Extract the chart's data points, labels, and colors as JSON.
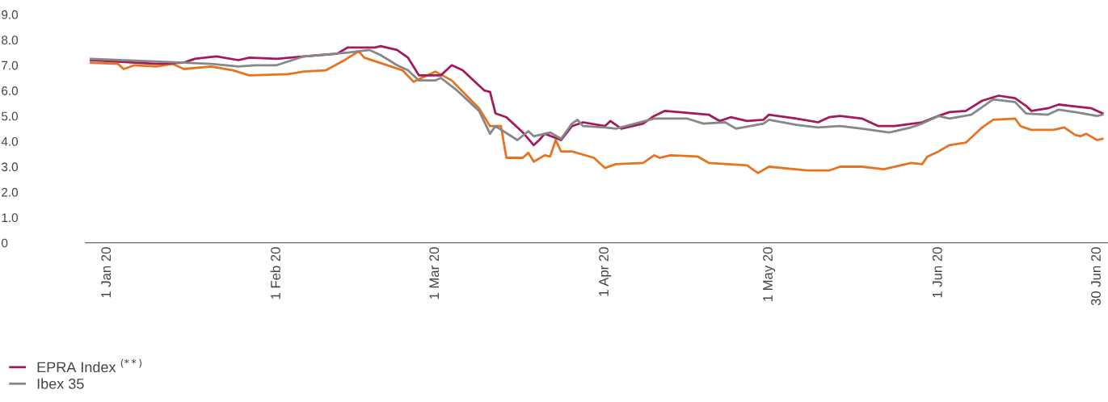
{
  "chart_data": {
    "type": "line",
    "xlim": [
      "2019-12-28",
      "2020-07-02"
    ],
    "xticks": [
      {
        "value": "2020-01-01",
        "label": "1 Jan 20"
      },
      {
        "value": "2020-02-01",
        "label": "1 Feb 20"
      },
      {
        "value": "2020-03-01",
        "label": "1 Mar 20"
      },
      {
        "value": "2020-04-01",
        "label": "1 Apr 20"
      },
      {
        "value": "2020-05-01",
        "label": "1 May 20"
      },
      {
        "value": "2020-06-01",
        "label": "1 Jun 20"
      },
      {
        "value": "2020-06-30",
        "label": "30 Jun 20"
      }
    ],
    "ylim": [
      0,
      9
    ],
    "yticks": [
      0,
      {
        "value": 1,
        "label": "1.0"
      },
      {
        "value": 2,
        "label": "2.0"
      },
      {
        "value": 3,
        "label": "3.0"
      },
      {
        "value": 4,
        "label": "4.0"
      },
      {
        "value": 5,
        "label": "5.0"
      },
      {
        "value": 6,
        "label": "6.0"
      },
      {
        "value": 7,
        "label": "7.0"
      },
      {
        "value": 8,
        "label": "8.0"
      },
      {
        "value": 9,
        "label": "9.0"
      }
    ],
    "grid": false,
    "legend": "bottom left",
    "marker": "none",
    "line_style": "solid",
    "series": [
      {
        "color": "#e8731f",
        "x": [
          "2019-12-29",
          "2020-01-03",
          "2020-01-04",
          "2020-01-06",
          "2020-01-10",
          "2020-01-13",
          "2020-01-15",
          "2020-01-20",
          "2020-01-24",
          "2020-01-27",
          "2020-02-03",
          "2020-02-06",
          "2020-02-10",
          "2020-02-13",
          "2020-02-16",
          "2020-02-17",
          "2020-02-24",
          "2020-02-26",
          "2020-03-01",
          "2020-03-04",
          "2020-03-09",
          "2020-03-11",
          "2020-03-13",
          "2020-03-14",
          "2020-03-17",
          "2020-03-18",
          "2020-03-19",
          "2020-03-21",
          "2020-03-22",
          "2020-03-23",
          "2020-03-24",
          "2020-03-26",
          "2020-03-30",
          "2020-04-01",
          "2020-04-03",
          "2020-04-08",
          "2020-04-10",
          "2020-04-11",
          "2020-04-13",
          "2020-04-18",
          "2020-04-20",
          "2020-04-27",
          "2020-04-29",
          "2020-05-01",
          "2020-05-08",
          "2020-05-12",
          "2020-05-14",
          "2020-05-18",
          "2020-05-22",
          "2020-05-27",
          "2020-05-29",
          "2020-05-30",
          "2020-06-01",
          "2020-06-03",
          "2020-06-06",
          "2020-06-09",
          "2020-06-11",
          "2020-06-15",
          "2020-06-16",
          "2020-06-18",
          "2020-06-22",
          "2020-06-24",
          "2020-06-26",
          "2020-06-27",
          "2020-06-28",
          "2020-06-30",
          "2020-07-01"
        ],
        "values": [
          7.1,
          7.05,
          6.85,
          7.0,
          6.95,
          7.05,
          6.85,
          6.95,
          6.8,
          6.6,
          6.65,
          6.75,
          6.8,
          7.15,
          7.55,
          7.3,
          6.8,
          6.35,
          6.75,
          6.4,
          5.3,
          4.6,
          4.6,
          3.35,
          3.35,
          3.55,
          3.2,
          3.45,
          3.4,
          4.05,
          3.6,
          3.6,
          3.35,
          2.95,
          3.1,
          3.15,
          3.45,
          3.35,
          3.45,
          3.4,
          3.15,
          3.05,
          2.75,
          3.0,
          2.85,
          2.85,
          3.0,
          3.0,
          2.9,
          3.15,
          3.1,
          3.4,
          3.6,
          3.85,
          3.95,
          4.55,
          4.85,
          4.9,
          4.6,
          4.45,
          4.45,
          4.55,
          4.25,
          4.2,
          4.3,
          4.05,
          4.1
        ]
      },
      {
        "name": "EPRA Index $^{(**)}$",
        "color": "#a3195b",
        "x": [
          "2019-12-29",
          "2020-01-10",
          "2020-01-15",
          "2020-01-17",
          "2020-01-21",
          "2020-01-25",
          "2020-01-27",
          "2020-02-01",
          "2020-02-06",
          "2020-02-12",
          "2020-02-14",
          "2020-02-19",
          "2020-02-20",
          "2020-02-23",
          "2020-02-25",
          "2020-02-27",
          "2020-03-02",
          "2020-03-04",
          "2020-03-06",
          "2020-03-08",
          "2020-03-10",
          "2020-03-11",
          "2020-03-12",
          "2020-03-14",
          "2020-03-17",
          "2020-03-19",
          "2020-03-20",
          "2020-03-21",
          "2020-03-24",
          "2020-03-26",
          "2020-03-28",
          "2020-04-01",
          "2020-04-02",
          "2020-04-04",
          "2020-04-08",
          "2020-04-10",
          "2020-04-12",
          "2020-04-20",
          "2020-04-22",
          "2020-04-24",
          "2020-04-27",
          "2020-04-30",
          "2020-05-01",
          "2020-05-06",
          "2020-05-10",
          "2020-05-12",
          "2020-05-14",
          "2020-05-18",
          "2020-05-21",
          "2020-05-24",
          "2020-05-29",
          "2020-06-01",
          "2020-06-03",
          "2020-06-06",
          "2020-06-09",
          "2020-06-12",
          "2020-06-15",
          "2020-06-17",
          "2020-06-18",
          "2020-06-21",
          "2020-06-23",
          "2020-06-25",
          "2020-06-29",
          "2020-07-01"
        ],
        "values": [
          7.2,
          7.05,
          7.1,
          7.25,
          7.35,
          7.2,
          7.3,
          7.25,
          7.35,
          7.45,
          7.7,
          7.7,
          7.75,
          7.6,
          7.3,
          6.6,
          6.6,
          7.0,
          6.8,
          6.4,
          6.0,
          5.95,
          5.1,
          4.95,
          4.35,
          3.85,
          4.05,
          4.3,
          4.05,
          4.6,
          4.75,
          4.6,
          4.8,
          4.5,
          4.7,
          5.0,
          5.2,
          5.05,
          4.8,
          4.95,
          4.8,
          4.85,
          5.05,
          4.9,
          4.75,
          4.95,
          5.0,
          4.9,
          4.6,
          4.6,
          4.75,
          5.0,
          5.15,
          5.2,
          5.6,
          5.8,
          5.7,
          5.4,
          5.2,
          5.3,
          5.45,
          5.4,
          5.3,
          5.1
        ]
      },
      {
        "name": "Ibex 35",
        "color": "#878787",
        "x": [
          "2019-12-29",
          "2020-01-15",
          "2020-01-20",
          "2020-01-25",
          "2020-01-28",
          "2020-02-01",
          "2020-02-06",
          "2020-02-14",
          "2020-02-18",
          "2020-02-20",
          "2020-02-23",
          "2020-02-25",
          "2020-02-27",
          "2020-03-01",
          "2020-03-02",
          "2020-03-05",
          "2020-03-09",
          "2020-03-11",
          "2020-03-12",
          "2020-03-16",
          "2020-03-18",
          "2020-03-19",
          "2020-03-22",
          "2020-03-24",
          "2020-03-26",
          "2020-03-27",
          "2020-03-28",
          "2020-04-01",
          "2020-04-03",
          "2020-04-10",
          "2020-04-16",
          "2020-04-19",
          "2020-04-23",
          "2020-04-25",
          "2020-04-30",
          "2020-05-01",
          "2020-05-06",
          "2020-05-10",
          "2020-05-14",
          "2020-05-18",
          "2020-05-23",
          "2020-05-27",
          "2020-05-29",
          "2020-06-01",
          "2020-06-03",
          "2020-06-07",
          "2020-06-09",
          "2020-06-11",
          "2020-06-15",
          "2020-06-17",
          "2020-06-21",
          "2020-06-23",
          "2020-06-26",
          "2020-06-30",
          "2020-07-01"
        ],
        "values": [
          7.25,
          7.1,
          7.05,
          6.95,
          7.0,
          7.0,
          7.35,
          7.5,
          7.6,
          7.4,
          7.0,
          6.8,
          6.4,
          6.4,
          6.5,
          6.0,
          5.2,
          4.3,
          4.6,
          4.05,
          4.4,
          4.2,
          4.35,
          4.1,
          4.7,
          4.85,
          4.6,
          4.55,
          4.5,
          4.9,
          4.9,
          4.7,
          4.75,
          4.5,
          4.7,
          4.85,
          4.65,
          4.55,
          4.6,
          4.5,
          4.35,
          4.55,
          4.7,
          5.0,
          4.9,
          5.05,
          5.35,
          5.65,
          5.55,
          5.1,
          5.05,
          5.25,
          5.15,
          5.0,
          5.05
        ]
      }
    ]
  }
}
